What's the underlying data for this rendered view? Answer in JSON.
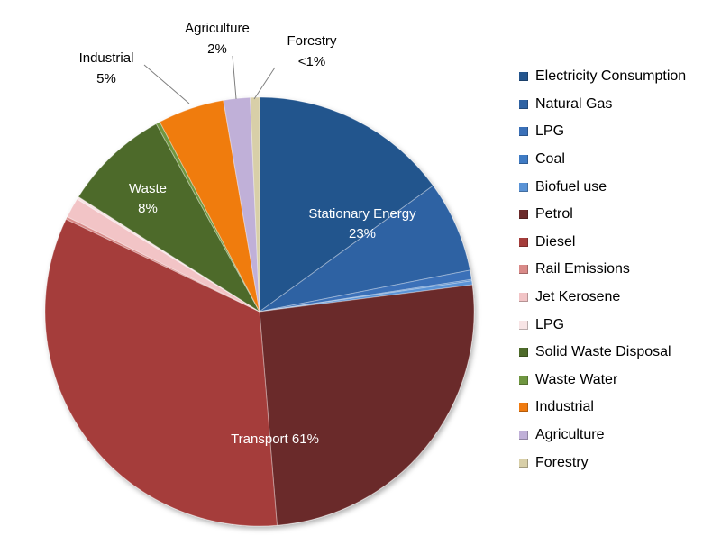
{
  "chart_data": {
    "type": "pie",
    "title": "",
    "legend_position": "right",
    "slices": [
      {
        "name": "Electricity Consumption",
        "value": 15.0,
        "color": "#24558d"
      },
      {
        "name": "Natural Gas",
        "value": 6.9,
        "color": "#2f62a3"
      },
      {
        "name": "LPG",
        "value": 0.7,
        "color": "#3a70b8"
      },
      {
        "name": "Coal",
        "value": 0.1,
        "color": "#3f7bc4"
      },
      {
        "name": "Biofuel use",
        "value": 0.3,
        "color": "#5a93d6"
      },
      {
        "name": "Petrol",
        "value": 25.7,
        "color": "#6b2a2a"
      },
      {
        "name": "Diesel",
        "value": 33.4,
        "color": "#a53d3b"
      },
      {
        "name": "Rail Emissions",
        "value": 0.2,
        "color": "#d98a88"
      },
      {
        "name": "Jet Kerosene",
        "value": 1.5,
        "color": "#f2c4c6"
      },
      {
        "name": "LPG",
        "value": 0.2,
        "color": "#f8e4e5"
      },
      {
        "name": "Solid Waste Disposal",
        "value": 8.0,
        "color": "#4e6b2a"
      },
      {
        "name": "Waste Water",
        "value": 0.3,
        "color": "#6f9640"
      },
      {
        "name": "Industrial",
        "value": 5.0,
        "color": "#f07b10"
      },
      {
        "name": "Agriculture",
        "value": 2.0,
        "color": "#c0b0d8"
      },
      {
        "name": "Forestry",
        "value": 0.7,
        "color": "#d8cfa8"
      }
    ],
    "labels": {
      "stationary": {
        "name": "Stationary Energy",
        "pct": "23%"
      },
      "transport": "Transport 61%",
      "waste": {
        "name": "Waste",
        "pct": "8%"
      },
      "industrial": {
        "name": "Industrial",
        "pct": "5%"
      },
      "agriculture": {
        "name": "Agriculture",
        "pct": "2%"
      },
      "forestry": {
        "name": "Forestry",
        "pct": "<1%"
      }
    }
  }
}
